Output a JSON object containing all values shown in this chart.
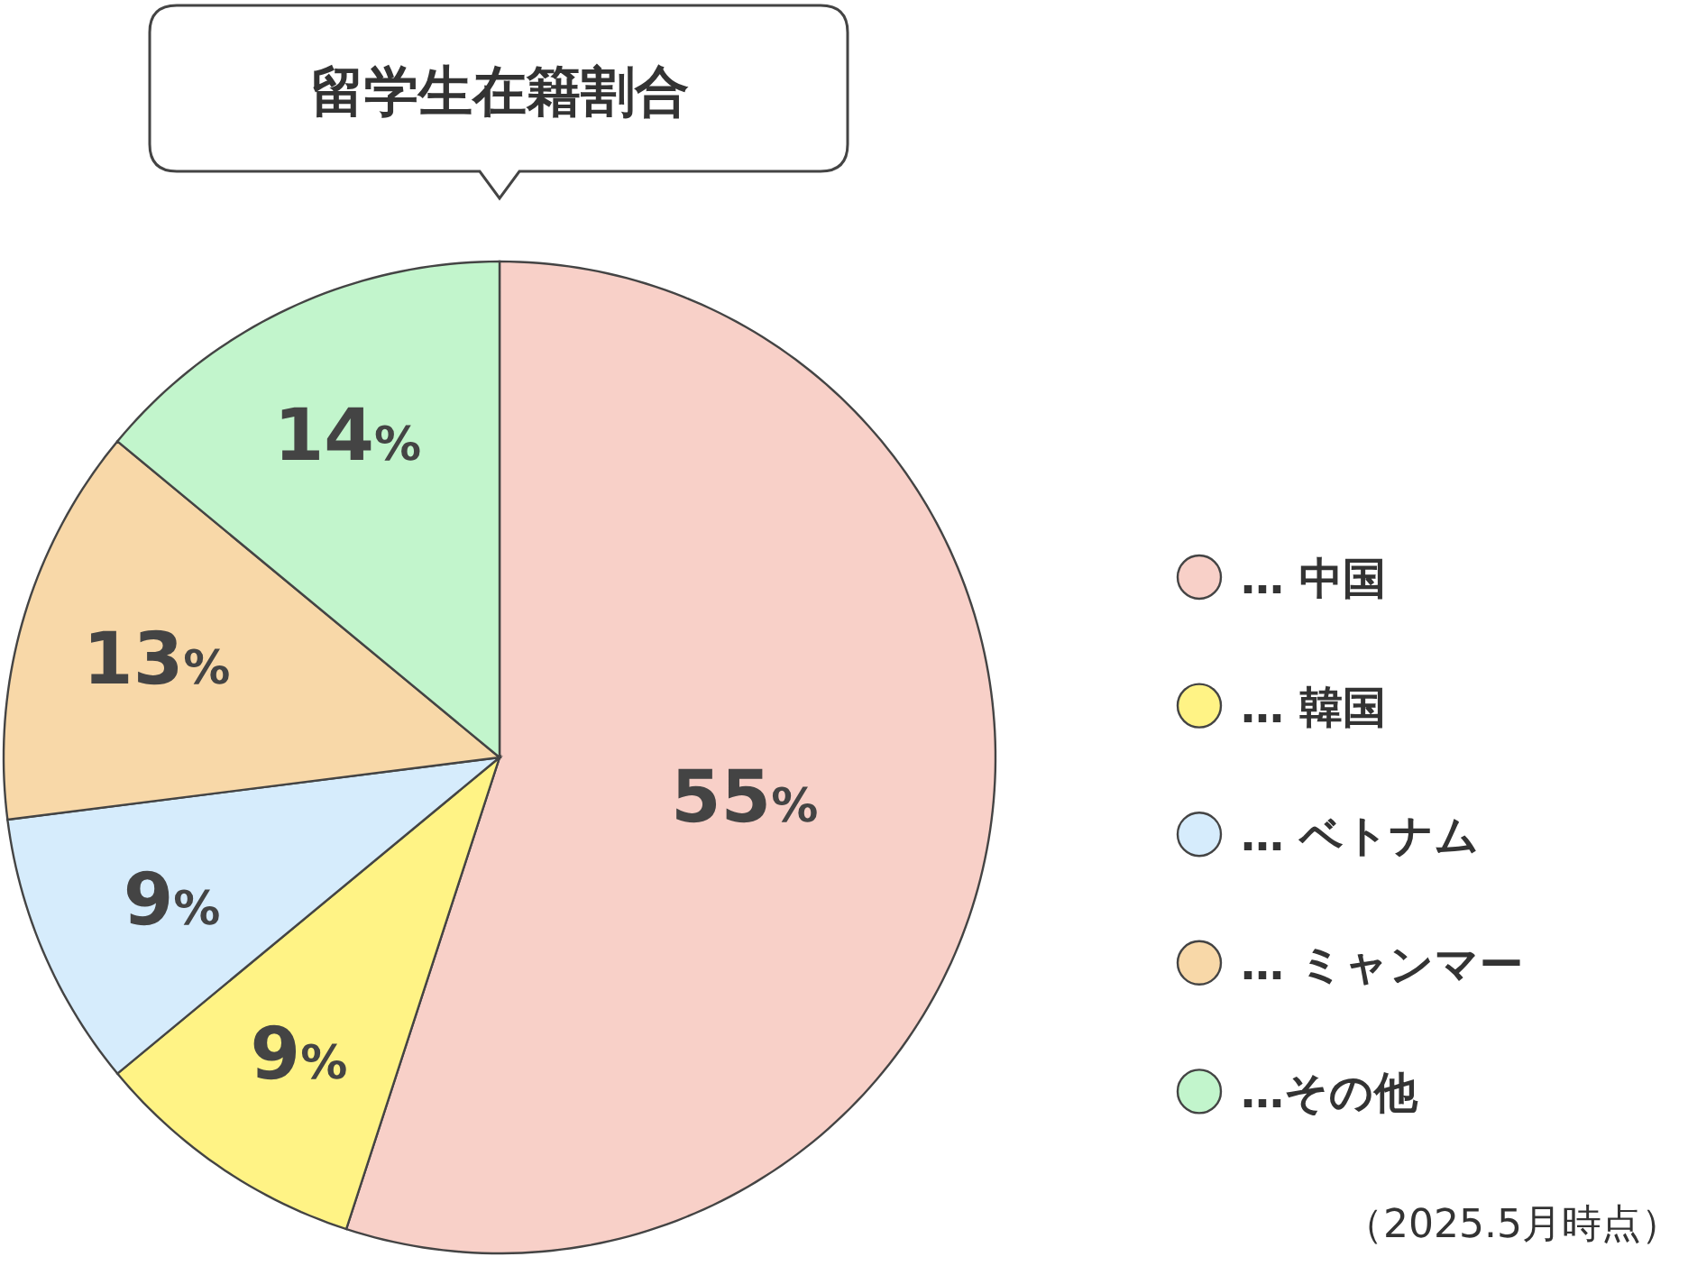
{
  "chart_data": {
    "type": "pie",
    "title": "留学生在籍割合",
    "categories": [
      "… 中国",
      "… 韓国",
      "… ベトナム",
      "… ミャンマー",
      "…その他"
    ],
    "values": [
      55,
      9,
      9,
      13,
      14
    ],
    "colors": [
      "#f8d0c8",
      "#fff385",
      "#d6ecfc",
      "#f8d8a8",
      "#c2f5cc"
    ],
    "value_labels": [
      "55%",
      "9%",
      "9%",
      "13%",
      "14%"
    ],
    "legend": "right",
    "annotations": [
      "（2025.5月時点）"
    ]
  }
}
